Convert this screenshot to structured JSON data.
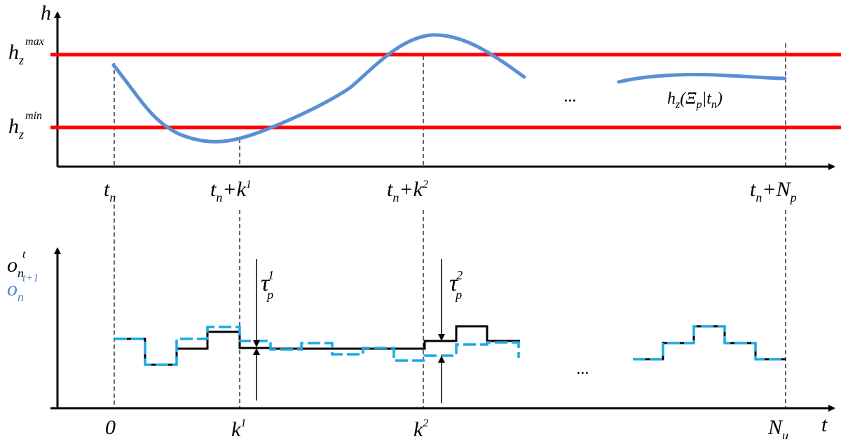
{
  "top_panel": {
    "y_axis_label": "h",
    "upper_bound": {
      "base": "h",
      "sub": "z",
      "sup": "max"
    },
    "lower_bound": {
      "base": "h",
      "sub": "z",
      "sup": "min"
    },
    "curve_label": {
      "h": "h",
      "z": "z",
      "open": "(",
      "xi": "Ξ",
      "p": "p",
      "bar": "|",
      "t": "t",
      "n": "n",
      "close": ")"
    },
    "ellipsis": "...",
    "x_ticks": {
      "t0": {
        "t": "t",
        "n": "n"
      },
      "t1": {
        "t": "t",
        "n": "n",
        "plus": "+k",
        "sup": "1"
      },
      "t2": {
        "t": "t",
        "n": "n",
        "plus": "+k",
        "sup": "2"
      },
      "t3": {
        "t": "t",
        "n": "n",
        "plus": "+N",
        "sub": "p"
      }
    },
    "bound_color": "#ff0000",
    "curve_color": "#5b8fd4"
  },
  "bottom_panel": {
    "y_label_1": {
      "base": "o",
      "sub": "n",
      "sup": "t"
    },
    "y_label_2": {
      "base": "o",
      "sub": "n",
      "sup": "t+1"
    },
    "x_axis_label": "t",
    "tau_1": {
      "tau": "τ",
      "sup": "1",
      "sub": "p"
    },
    "tau_2": {
      "tau": "τ",
      "sup": "2",
      "sub": "p"
    },
    "ellipsis": "...",
    "x_ticks": {
      "zero": "0",
      "k1": {
        "k": "k",
        "sup": "1"
      },
      "k2": {
        "k": "k",
        "sup": "2"
      },
      "nu": {
        "N": "N",
        "sub": "u"
      }
    },
    "signal_t_color": "#000000",
    "signal_t1_color": "#1aa9e6"
  }
}
